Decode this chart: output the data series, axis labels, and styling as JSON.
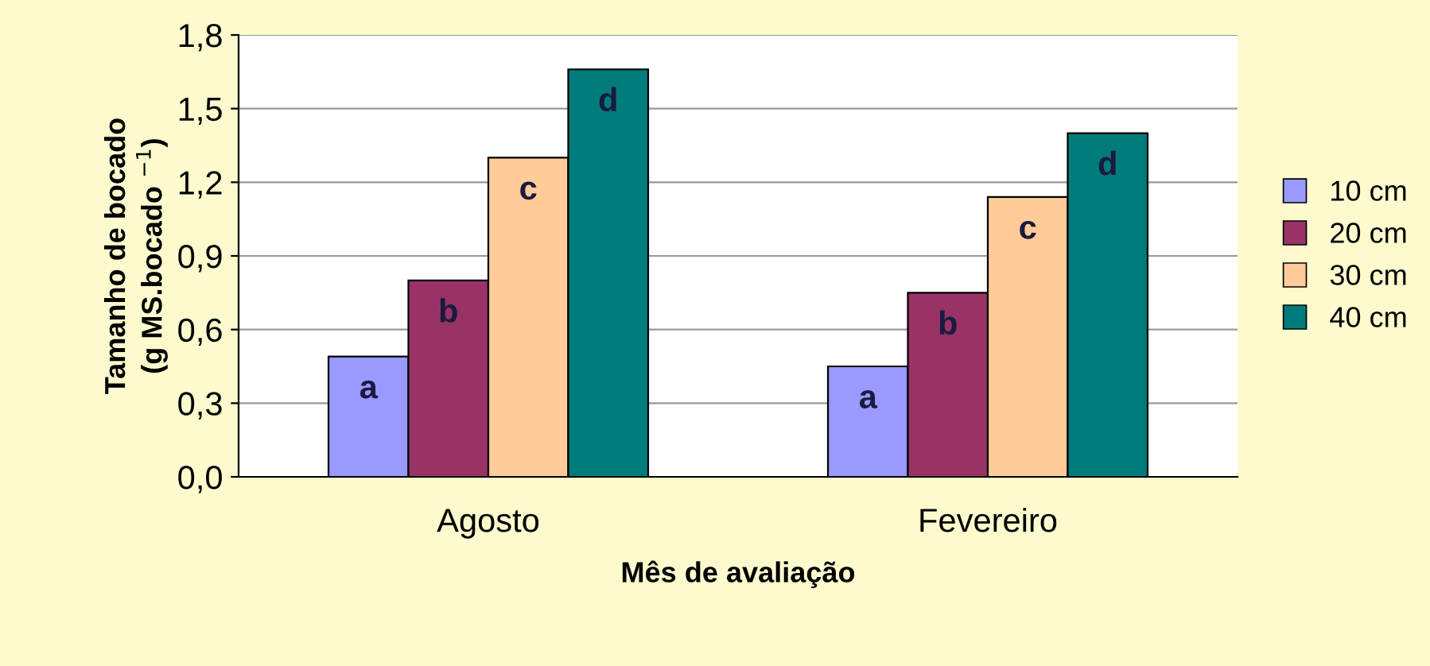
{
  "chart_data": {
    "type": "bar",
    "xlabel": "Mês de avaliação",
    "ylabel": "Tamanho de bocado\n(g MS.bocado $^{−1}$)",
    "categories": [
      "Agosto",
      "Fevereiro"
    ],
    "series": [
      {
        "name": "10 cm",
        "color": "#9999ff",
        "values": [
          0.49,
          0.45
        ],
        "value_labels": [
          "a",
          "a"
        ]
      },
      {
        "name": "20 cm",
        "color": "#993366",
        "values": [
          0.8,
          0.75
        ],
        "value_labels": [
          "b",
          "b"
        ]
      },
      {
        "name": "30 cm",
        "color": "#ffcc99",
        "values": [
          1.3,
          1.14
        ],
        "value_labels": [
          "c",
          "c"
        ]
      },
      {
        "name": "40 cm",
        "color": "#007b7b",
        "values": [
          1.66,
          1.4
        ],
        "value_labels": [
          "d",
          "d"
        ]
      }
    ],
    "ylim": [
      0,
      1.8
    ],
    "yticks": [
      {
        "value": 0,
        "label": "0,0"
      },
      {
        "value": 0.3,
        "label": "0,3"
      },
      {
        "value": 0.6,
        "label": "0,6"
      },
      {
        "value": 0.9,
        "label": "0,9"
      },
      {
        "value": 1.2,
        "label": "1,2"
      },
      {
        "value": 1.5,
        "label": "1,5"
      },
      {
        "value": 1.8,
        "label": "1,8"
      }
    ],
    "grid": "y",
    "legend": "right"
  }
}
